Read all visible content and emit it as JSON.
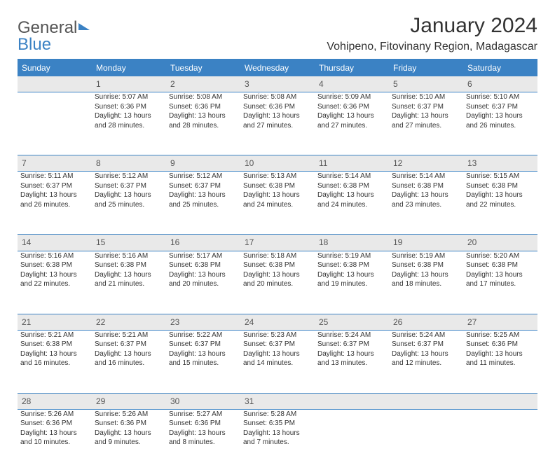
{
  "brand": {
    "part1": "General",
    "part2": "Blue"
  },
  "title": "January 2024",
  "location": "Vohipeno, Fitovinany Region, Madagascar",
  "colors": {
    "header_bg": "#3b82c4",
    "daynum_bg": "#e9e9e9",
    "text": "#333333",
    "border": "#3b82c4"
  },
  "typography": {
    "title_fontsize": 30,
    "location_fontsize": 16,
    "weekday_fontsize": 12,
    "daynum_fontsize": 12,
    "cell_fontsize": 10
  },
  "weekdays": [
    "Sunday",
    "Monday",
    "Tuesday",
    "Wednesday",
    "Thursday",
    "Friday",
    "Saturday"
  ],
  "weeks": [
    {
      "nums": [
        "",
        "1",
        "2",
        "3",
        "4",
        "5",
        "6"
      ],
      "cells": [
        null,
        {
          "sunrise": "Sunrise: 5:07 AM",
          "sunset": "Sunset: 6:36 PM",
          "day1": "Daylight: 13 hours",
          "day2": "and 28 minutes."
        },
        {
          "sunrise": "Sunrise: 5:08 AM",
          "sunset": "Sunset: 6:36 PM",
          "day1": "Daylight: 13 hours",
          "day2": "and 28 minutes."
        },
        {
          "sunrise": "Sunrise: 5:08 AM",
          "sunset": "Sunset: 6:36 PM",
          "day1": "Daylight: 13 hours",
          "day2": "and 27 minutes."
        },
        {
          "sunrise": "Sunrise: 5:09 AM",
          "sunset": "Sunset: 6:36 PM",
          "day1": "Daylight: 13 hours",
          "day2": "and 27 minutes."
        },
        {
          "sunrise": "Sunrise: 5:10 AM",
          "sunset": "Sunset: 6:37 PM",
          "day1": "Daylight: 13 hours",
          "day2": "and 27 minutes."
        },
        {
          "sunrise": "Sunrise: 5:10 AM",
          "sunset": "Sunset: 6:37 PM",
          "day1": "Daylight: 13 hours",
          "day2": "and 26 minutes."
        }
      ]
    },
    {
      "nums": [
        "7",
        "8",
        "9",
        "10",
        "11",
        "12",
        "13"
      ],
      "cells": [
        {
          "sunrise": "Sunrise: 5:11 AM",
          "sunset": "Sunset: 6:37 PM",
          "day1": "Daylight: 13 hours",
          "day2": "and 26 minutes."
        },
        {
          "sunrise": "Sunrise: 5:12 AM",
          "sunset": "Sunset: 6:37 PM",
          "day1": "Daylight: 13 hours",
          "day2": "and 25 minutes."
        },
        {
          "sunrise": "Sunrise: 5:12 AM",
          "sunset": "Sunset: 6:37 PM",
          "day1": "Daylight: 13 hours",
          "day2": "and 25 minutes."
        },
        {
          "sunrise": "Sunrise: 5:13 AM",
          "sunset": "Sunset: 6:38 PM",
          "day1": "Daylight: 13 hours",
          "day2": "and 24 minutes."
        },
        {
          "sunrise": "Sunrise: 5:14 AM",
          "sunset": "Sunset: 6:38 PM",
          "day1": "Daylight: 13 hours",
          "day2": "and 24 minutes."
        },
        {
          "sunrise": "Sunrise: 5:14 AM",
          "sunset": "Sunset: 6:38 PM",
          "day1": "Daylight: 13 hours",
          "day2": "and 23 minutes."
        },
        {
          "sunrise": "Sunrise: 5:15 AM",
          "sunset": "Sunset: 6:38 PM",
          "day1": "Daylight: 13 hours",
          "day2": "and 22 minutes."
        }
      ]
    },
    {
      "nums": [
        "14",
        "15",
        "16",
        "17",
        "18",
        "19",
        "20"
      ],
      "cells": [
        {
          "sunrise": "Sunrise: 5:16 AM",
          "sunset": "Sunset: 6:38 PM",
          "day1": "Daylight: 13 hours",
          "day2": "and 22 minutes."
        },
        {
          "sunrise": "Sunrise: 5:16 AM",
          "sunset": "Sunset: 6:38 PM",
          "day1": "Daylight: 13 hours",
          "day2": "and 21 minutes."
        },
        {
          "sunrise": "Sunrise: 5:17 AM",
          "sunset": "Sunset: 6:38 PM",
          "day1": "Daylight: 13 hours",
          "day2": "and 20 minutes."
        },
        {
          "sunrise": "Sunrise: 5:18 AM",
          "sunset": "Sunset: 6:38 PM",
          "day1": "Daylight: 13 hours",
          "day2": "and 20 minutes."
        },
        {
          "sunrise": "Sunrise: 5:19 AM",
          "sunset": "Sunset: 6:38 PM",
          "day1": "Daylight: 13 hours",
          "day2": "and 19 minutes."
        },
        {
          "sunrise": "Sunrise: 5:19 AM",
          "sunset": "Sunset: 6:38 PM",
          "day1": "Daylight: 13 hours",
          "day2": "and 18 minutes."
        },
        {
          "sunrise": "Sunrise: 5:20 AM",
          "sunset": "Sunset: 6:38 PM",
          "day1": "Daylight: 13 hours",
          "day2": "and 17 minutes."
        }
      ]
    },
    {
      "nums": [
        "21",
        "22",
        "23",
        "24",
        "25",
        "26",
        "27"
      ],
      "cells": [
        {
          "sunrise": "Sunrise: 5:21 AM",
          "sunset": "Sunset: 6:38 PM",
          "day1": "Daylight: 13 hours",
          "day2": "and 16 minutes."
        },
        {
          "sunrise": "Sunrise: 5:21 AM",
          "sunset": "Sunset: 6:37 PM",
          "day1": "Daylight: 13 hours",
          "day2": "and 16 minutes."
        },
        {
          "sunrise": "Sunrise: 5:22 AM",
          "sunset": "Sunset: 6:37 PM",
          "day1": "Daylight: 13 hours",
          "day2": "and 15 minutes."
        },
        {
          "sunrise": "Sunrise: 5:23 AM",
          "sunset": "Sunset: 6:37 PM",
          "day1": "Daylight: 13 hours",
          "day2": "and 14 minutes."
        },
        {
          "sunrise": "Sunrise: 5:24 AM",
          "sunset": "Sunset: 6:37 PM",
          "day1": "Daylight: 13 hours",
          "day2": "and 13 minutes."
        },
        {
          "sunrise": "Sunrise: 5:24 AM",
          "sunset": "Sunset: 6:37 PM",
          "day1": "Daylight: 13 hours",
          "day2": "and 12 minutes."
        },
        {
          "sunrise": "Sunrise: 5:25 AM",
          "sunset": "Sunset: 6:36 PM",
          "day1": "Daylight: 13 hours",
          "day2": "and 11 minutes."
        }
      ]
    },
    {
      "nums": [
        "28",
        "29",
        "30",
        "31",
        "",
        "",
        ""
      ],
      "cells": [
        {
          "sunrise": "Sunrise: 5:26 AM",
          "sunset": "Sunset: 6:36 PM",
          "day1": "Daylight: 13 hours",
          "day2": "and 10 minutes."
        },
        {
          "sunrise": "Sunrise: 5:26 AM",
          "sunset": "Sunset: 6:36 PM",
          "day1": "Daylight: 13 hours",
          "day2": "and 9 minutes."
        },
        {
          "sunrise": "Sunrise: 5:27 AM",
          "sunset": "Sunset: 6:36 PM",
          "day1": "Daylight: 13 hours",
          "day2": "and 8 minutes."
        },
        {
          "sunrise": "Sunrise: 5:28 AM",
          "sunset": "Sunset: 6:35 PM",
          "day1": "Daylight: 13 hours",
          "day2": "and 7 minutes."
        },
        null,
        null,
        null
      ]
    }
  ]
}
